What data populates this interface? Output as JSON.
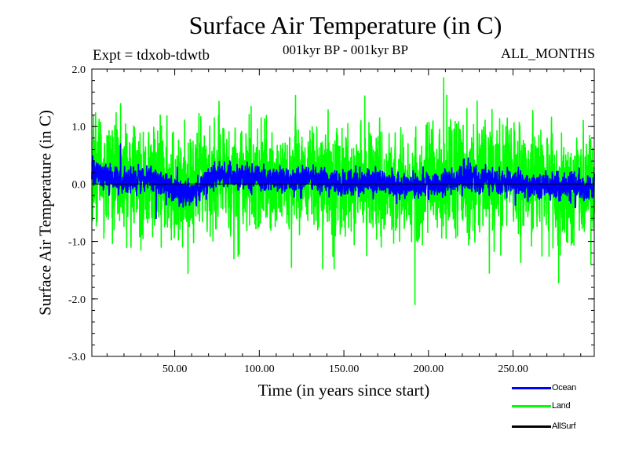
{
  "chart_data": {
    "type": "line",
    "title": "Surface Air Temperature (in C)",
    "subtitle_left": "Expt = tdxob-tdwtb",
    "subtitle_center": "001kyr BP - 001kyr BP",
    "subtitle_right": "ALL_MONTHS",
    "xlabel": "Time (in years since start)",
    "ylabel": "Surface Air Temperature (in C)",
    "xlim": [
      1,
      298
    ],
    "ylim": [
      -3.0,
      2.0
    ],
    "x_ticks": [
      50,
      100,
      150,
      200,
      250
    ],
    "x_tick_labels": [
      "50.00",
      "100.00",
      "150.00",
      "200.00",
      "250.00"
    ],
    "y_ticks": [
      -3.0,
      -2.0,
      -1.0,
      0.0,
      1.0,
      2.0
    ],
    "y_tick_labels": [
      "-3.0",
      "-2.0",
      "-1.0",
      "0.0",
      "1.0",
      "2.0"
    ],
    "zero_line": true,
    "series": [
      {
        "name": "Land",
        "color": "#00ff00",
        "points_per_year": 12,
        "noise_std": 0.42,
        "segment_means": [
          0.3,
          0.1,
          0.05,
          -0.1,
          0.1,
          0.15,
          0.05,
          0.1,
          0.0,
          0.05,
          -0.05,
          0.05,
          0.1,
          0.2,
          0.1,
          -0.1,
          0.1
        ],
        "extremes": [
          [
            2,
            1.2
          ],
          [
            18,
            1.4
          ],
          [
            30,
            -1.15
          ],
          [
            42,
            -1.1
          ],
          [
            85,
            -1.3
          ],
          [
            119,
            -1.45
          ],
          [
            192,
            -2.1
          ],
          [
            209,
            1.85
          ],
          [
            236,
            -1.55
          ],
          [
            277,
            -1.72
          ],
          [
            296,
            -1.4
          ]
        ]
      },
      {
        "name": "Ocean",
        "color": "#0000ff",
        "points_per_year": 12,
        "noise_std": 0.1,
        "segment_means": [
          0.2,
          0.05,
          0.1,
          -0.2,
          0.15,
          0.1,
          0.05,
          0.1,
          0.0,
          0.05,
          -0.05,
          0.0,
          0.1,
          0.05,
          0.0,
          -0.05,
          -0.05
        ],
        "extremes": [
          [
            18,
            0.7
          ],
          [
            39,
            -0.6
          ]
        ]
      }
    ],
    "legend": {
      "placement": "bottom-right",
      "entries": [
        {
          "label": "Ocean",
          "color": "#0000ff"
        },
        {
          "label": "Land",
          "color": "#00ff00"
        },
        {
          "label": "AllSurf",
          "color": "#000000"
        }
      ]
    }
  }
}
